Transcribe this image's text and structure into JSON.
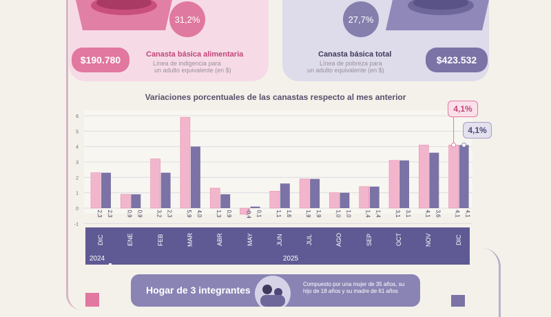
{
  "top": {
    "alimentaria": {
      "pct": "31,2%",
      "price": "$190.780",
      "title": "Canasta básica alimentaria",
      "sub1": "Línea de indigencia para",
      "sub2": "un adulto equivalente (en $)"
    },
    "total": {
      "pct": "27,7%",
      "price": "$423.532",
      "title": "Canasta básica total",
      "sub1": "Línea de pobreza para",
      "sub2": "un adulto equivalente (en $)"
    }
  },
  "callouts": {
    "alimentaria": "4,1%",
    "total": "4,1%"
  },
  "year_labels": {
    "y2024": "2024",
    "y2025": "2025"
  },
  "hogar": {
    "title": "Hogar de 3 integrantes",
    "desc": "Compuesto por una mujer de 35 años, su hijo de 18 años y su madre de 61 años"
  },
  "colors": {
    "pink": "#f2b6cc",
    "pink_dark": "#e2779f",
    "purple": "#7b73a6",
    "purple_dark": "#5f5a93",
    "accent_text": "#c2457a"
  },
  "chart_data": {
    "type": "bar",
    "title": "Variaciones porcentuales de las canastas respecto al mes anterior",
    "categories": [
      "DIC",
      "ENE",
      "FEB",
      "MAR",
      "ABR",
      "MAY",
      "JUN",
      "JUL",
      "AGO",
      "SEP",
      "OCT",
      "NOV",
      "DIC"
    ],
    "labels": {
      "alimentaria": [
        "2,3",
        "0,9",
        "3,2",
        "5,9",
        "1,3",
        "-0,4",
        "1,1",
        "1,9",
        "1,0",
        "1,4",
        "3,1",
        "4,1",
        "4,1"
      ],
      "total": [
        "2,3",
        "0,9",
        "2,3",
        "4,0",
        "0,9",
        "0,1",
        "1,6",
        "1,9",
        "1,0",
        "1,4",
        "3,1",
        "3,6",
        "4,1"
      ]
    },
    "series": [
      {
        "values": [
          2.3,
          0.9,
          3.2,
          5.9,
          1.3,
          -0.4,
          1.1,
          1.9,
          1.0,
          1.4,
          3.1,
          4.1,
          4.1
        ]
      },
      {
        "values": [
          2.3,
          0.9,
          2.3,
          4.0,
          0.9,
          0.1,
          1.6,
          1.9,
          1.0,
          1.4,
          3.1,
          3.6,
          4.1
        ]
      }
    ],
    "yticks": [
      "6",
      "5",
      "4",
      "3",
      "2",
      "1",
      "0",
      "-1"
    ],
    "ylim": [
      -1,
      6
    ],
    "grid": true
  }
}
